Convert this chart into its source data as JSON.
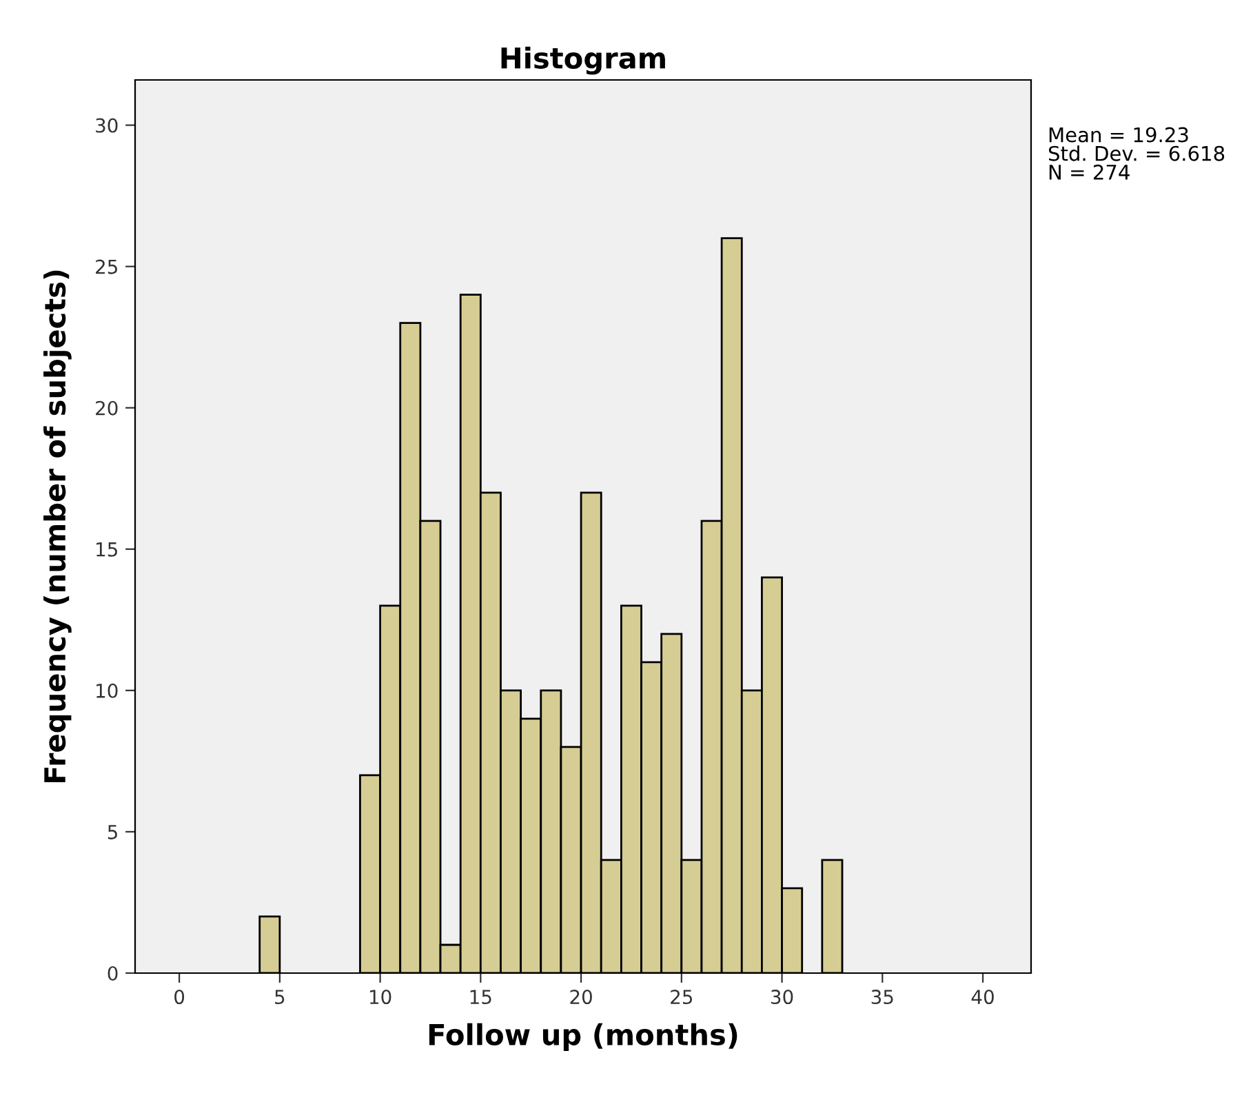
{
  "chart_data": {
    "type": "histogram",
    "title": "Histogram",
    "xlabel": "Follow up (months)",
    "ylabel": "Frequency (number of subjects)",
    "bins": [
      4,
      5,
      6,
      7,
      8,
      9,
      10,
      11,
      12,
      13,
      14,
      15,
      16,
      17,
      18,
      19,
      20,
      21,
      22,
      23,
      24,
      25,
      26,
      27,
      28,
      29,
      30,
      31,
      32,
      33
    ],
    "values": [
      2,
      0,
      0,
      0,
      0,
      7,
      13,
      23,
      16,
      1,
      24,
      17,
      10,
      9,
      10,
      8,
      17,
      4,
      13,
      11,
      12,
      4,
      16,
      26,
      10,
      14,
      3,
      0,
      4
    ],
    "color": "#d6cd94",
    "xlim": [
      -2.2,
      42.4
    ],
    "xticks": [
      0,
      5,
      10,
      15,
      20,
      25,
      30,
      35,
      40
    ],
    "ylim": [
      0,
      31.6
    ],
    "yticks": [
      0,
      5,
      10,
      15,
      20,
      25,
      30
    ],
    "grid": false,
    "annotations": [
      "Mean = 19.23\nStd. Dev. = 6.618\nN = 274"
    ]
  }
}
